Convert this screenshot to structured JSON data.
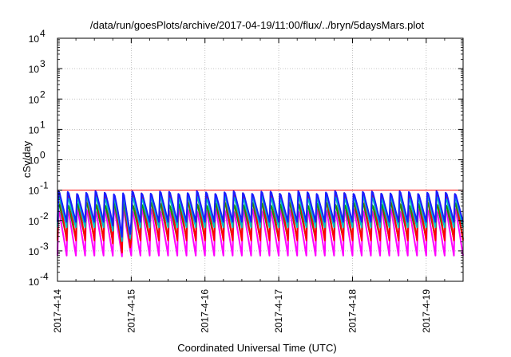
{
  "chart_data": {
    "type": "line",
    "title": "/data/run/goesPlots/archive/2017-04-19/11:00/flux/../bryn/5daysMars.plot",
    "xlabel": "Coordinated Universal Time (UTC)",
    "ylabel": "cSv/day",
    "x_scale": "time",
    "y_scale": "log",
    "xlim": [
      "2017-04-14T00:00",
      "2017-04-19T12:00"
    ],
    "ylim": [
      0.0001,
      10000
    ],
    "x_ticks": [
      "2017-4-14",
      "2017-4-15",
      "2017-4-16",
      "2017-4-17",
      "2017-4-18",
      "2017-4-19"
    ],
    "y_ticks": [
      {
        "value": 0.0001,
        "base": "10",
        "exp": "-4"
      },
      {
        "value": 0.001,
        "base": "10",
        "exp": "-3"
      },
      {
        "value": 0.01,
        "base": "10",
        "exp": "-2"
      },
      {
        "value": 0.1,
        "base": "10",
        "exp": "-1"
      },
      {
        "value": 1,
        "base": "10",
        "exp": "0"
      },
      {
        "value": 10,
        "base": "10",
        "exp": "1"
      },
      {
        "value": 100,
        "base": "10",
        "exp": "2"
      },
      {
        "value": 1000,
        "base": "10",
        "exp": "3"
      },
      {
        "value": 10000,
        "base": "10",
        "exp": "4"
      }
    ],
    "grid": true,
    "reference_lines": [
      {
        "y": 0.1,
        "color": "#ff0000"
      }
    ],
    "cycle_hours": 3,
    "dip_window": {
      "start": "2017-04-14T17:00",
      "end": "2017-04-15T00:00"
    },
    "series": [
      {
        "color": "#ff0000",
        "peak": 0.1,
        "trough": 0.0022,
        "dip_trough": 0.0007
      },
      {
        "color": "#1a1aff",
        "peak": 0.1,
        "trough": 0.009,
        "dip_trough": 0.0022
      },
      {
        "color": "#00bfbf",
        "peak": 0.07,
        "trough": 0.006,
        "dip_trough": 0.0016
      },
      {
        "color": "#00a000",
        "peak": 0.045,
        "trough": 0.0025,
        "dip_trough": 0.0009
      },
      {
        "color": "#ff00ff",
        "peak": 0.03,
        "trough": 0.0007,
        "dip_trough": 0.00065
      }
    ]
  }
}
